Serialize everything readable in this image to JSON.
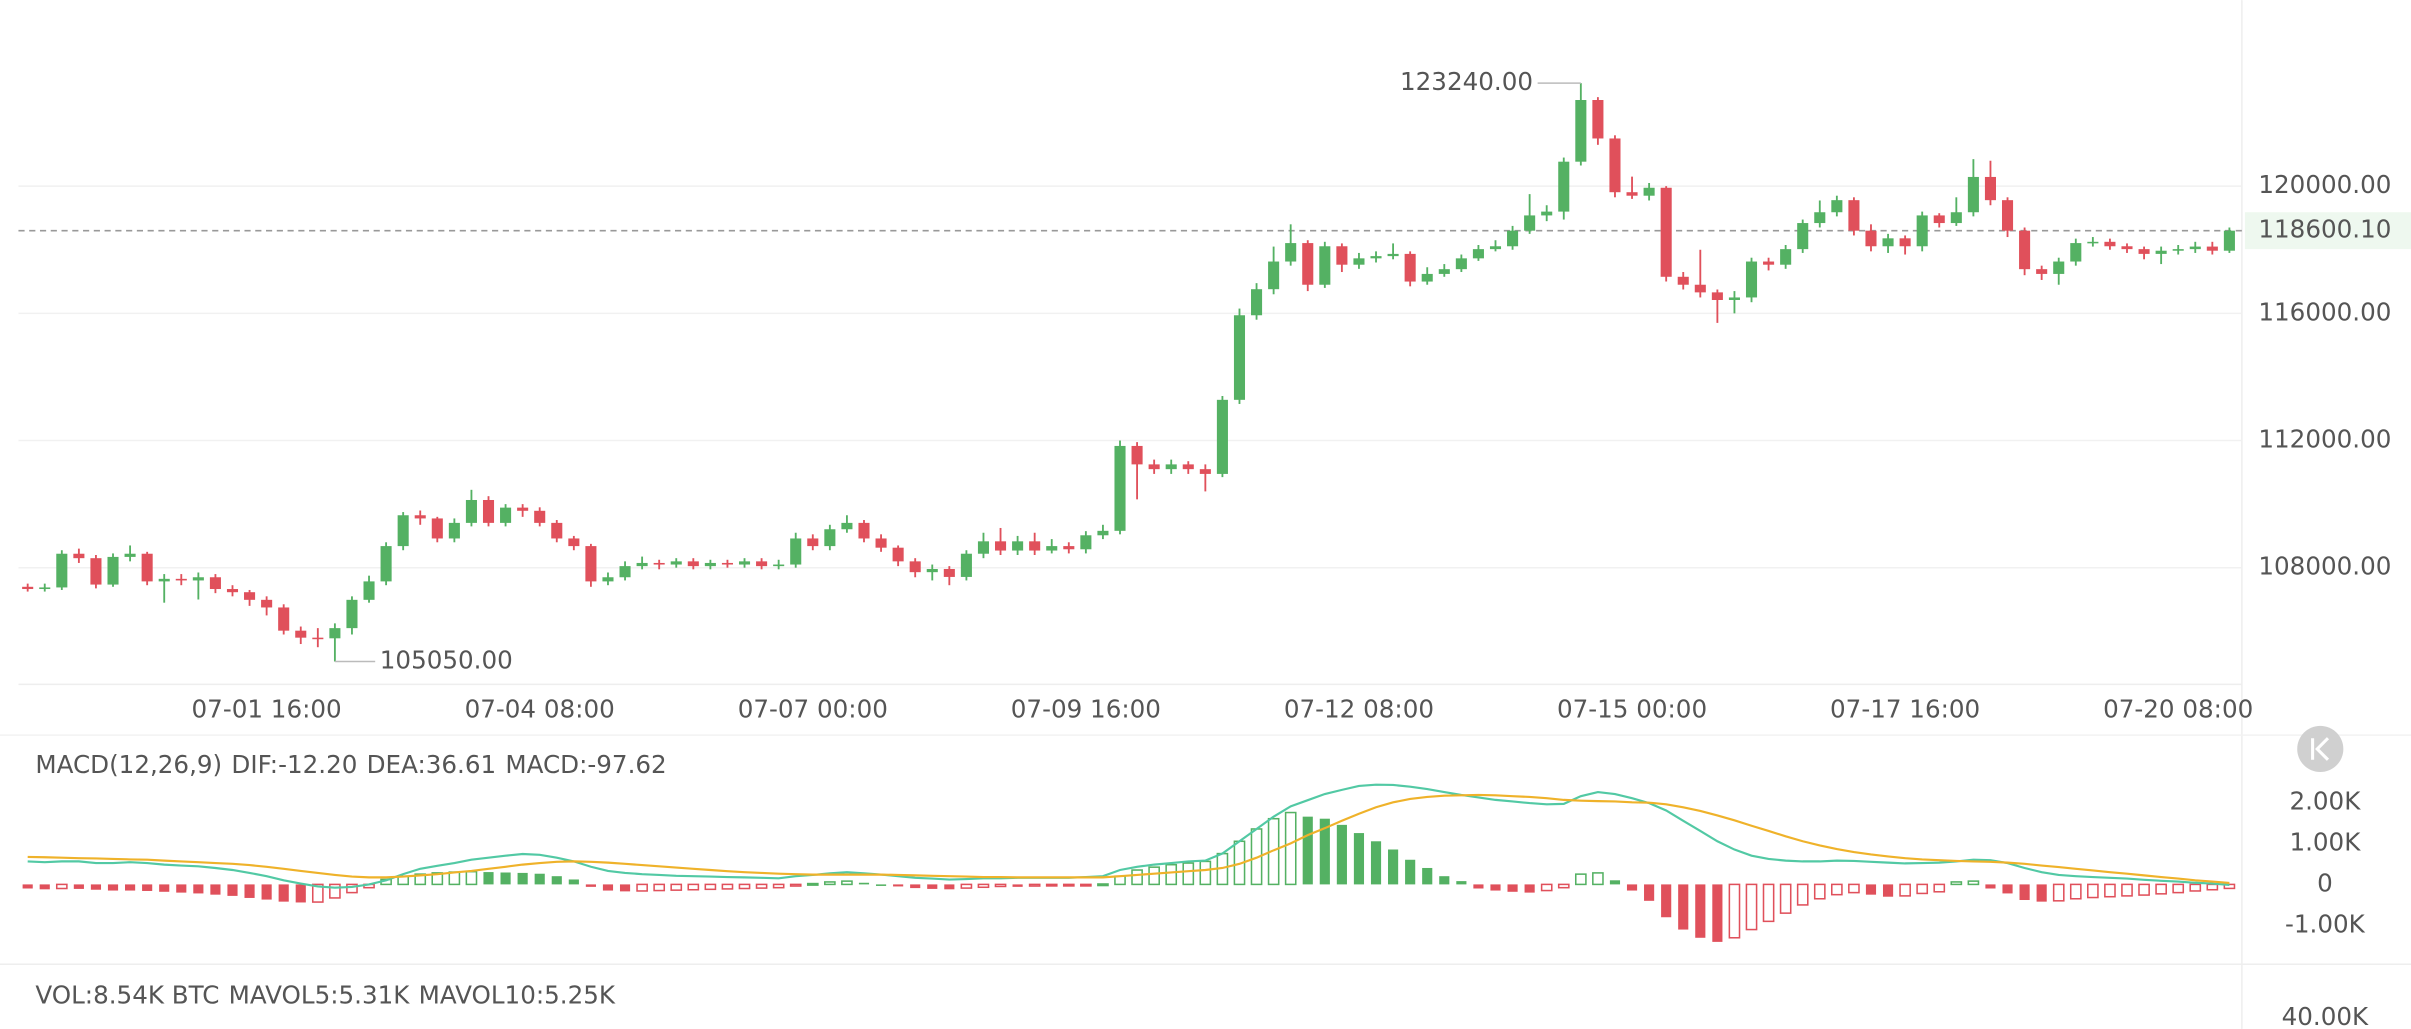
{
  "chart_data": [
    {
      "type": "candlestick",
      "categories": [
        null,
        null,
        null,
        null,
        null,
        null,
        null,
        null,
        null,
        null,
        null,
        null,
        null,
        null,
        "07-01 16:00",
        null,
        null,
        null,
        null,
        null,
        null,
        null,
        null,
        null,
        null,
        null,
        null,
        null,
        null,
        null,
        "07-04 08:00",
        null,
        null,
        null,
        null,
        null,
        null,
        null,
        null,
        null,
        null,
        null,
        null,
        null,
        null,
        null,
        "07-07 00:00",
        null,
        null,
        null,
        null,
        null,
        null,
        null,
        null,
        null,
        null,
        null,
        null,
        null,
        null,
        null,
        "07-09 16:00",
        null,
        null,
        null,
        null,
        null,
        null,
        null,
        null,
        null,
        null,
        null,
        null,
        null,
        null,
        null,
        "07-12 08:00",
        null,
        null,
        null,
        null,
        null,
        null,
        null,
        null,
        null,
        null,
        null,
        null,
        null,
        null,
        null,
        "07-15 00:00",
        null,
        null,
        null,
        null,
        null,
        null,
        null,
        null,
        null,
        null,
        null,
        null,
        null,
        null,
        null,
        "07-17 16:00",
        null,
        null,
        null,
        null,
        null,
        null,
        null,
        null,
        null,
        null,
        null,
        null,
        null,
        null,
        null,
        "07-20 08:00",
        null,
        null,
        null
      ],
      "open": [
        107400,
        107330,
        107380,
        108440,
        108300,
        107470,
        108340,
        108440,
        107570,
        107650,
        107600,
        107700,
        107330,
        107230,
        106990,
        106750,
        106020,
        105800,
        105780,
        106100,
        106990,
        107570,
        108680,
        109650,
        109550,
        108920,
        109410,
        110130,
        109410,
        109890,
        109790,
        109410,
        108920,
        108680,
        107570,
        107700,
        108050,
        108150,
        108100,
        108200,
        108050,
        108150,
        108100,
        108200,
        108050,
        108100,
        108920,
        108680,
        109210,
        109410,
        108920,
        108630,
        108200,
        107860,
        107960,
        107710,
        108440,
        108830,
        108540,
        108830,
        108540,
        108680,
        108580,
        109020,
        109160,
        111830,
        111250,
        111100,
        111250,
        111100,
        110950,
        113280,
        115940,
        116760,
        117630,
        118210,
        116900,
        118110,
        117530,
        117730,
        117800,
        117870,
        117000,
        117240,
        117390,
        117730,
        118020,
        118110,
        118600,
        119080,
        119200,
        120770,
        122710,
        121500,
        119810,
        119700,
        119950,
        117150,
        116900,
        116660,
        116420,
        116500,
        117630,
        117530,
        118020,
        118840,
        119180,
        119560,
        118600,
        118110,
        118360,
        118110,
        119080,
        118840,
        119180,
        120290,
        119560,
        118600,
        117390,
        117240,
        117630,
        118210,
        118250,
        118110,
        118020,
        117870,
        117970,
        118020,
        118100,
        117970
      ],
      "high": [
        107500,
        107500,
        108550,
        108600,
        108400,
        108450,
        108700,
        108500,
        107800,
        107800,
        107850,
        107800,
        107450,
        107300,
        107100,
        106850,
        106150,
        106100,
        106250,
        107100,
        107750,
        108800,
        109750,
        109800,
        109600,
        109550,
        110450,
        110250,
        110000,
        110000,
        109900,
        109500,
        109000,
        108750,
        107850,
        108200,
        108350,
        108250,
        108300,
        108300,
        108250,
        108250,
        108300,
        108300,
        108250,
        109100,
        109050,
        109350,
        109650,
        109500,
        109050,
        108700,
        108300,
        108100,
        108050,
        108550,
        109100,
        109250,
        109000,
        109100,
        108900,
        108800,
        109150,
        109350,
        112000,
        111950,
        111400,
        111400,
        111350,
        111250,
        113400,
        116150,
        116950,
        118100,
        118800,
        118300,
        118250,
        118200,
        117900,
        117950,
        118200,
        117950,
        117450,
        117550,
        117850,
        118150,
        118300,
        118750,
        119750,
        119400,
        120900,
        123240,
        122800,
        121600,
        120300,
        120100,
        120000,
        117300,
        118000,
        116750,
        116700,
        117750,
        117750,
        118150,
        118950,
        119550,
        119700,
        119650,
        118800,
        118500,
        118450,
        119200,
        119150,
        119650,
        120850,
        120800,
        119650,
        118700,
        117500,
        117750,
        118350,
        118400,
        118350,
        118200,
        118100,
        118100,
        118150,
        118250,
        118250,
        118700
      ],
      "low": [
        107250,
        107250,
        107300,
        108150,
        107350,
        107400,
        108200,
        107450,
        106900,
        107450,
        107000,
        107200,
        107100,
        106800,
        106500,
        105900,
        105600,
        105500,
        105050,
        105900,
        106900,
        107450,
        108550,
        109350,
        108800,
        108800,
        109300,
        109300,
        109300,
        109600,
        109300,
        108800,
        108550,
        107400,
        107450,
        107600,
        107950,
        107950,
        108000,
        107950,
        107950,
        108000,
        108000,
        107950,
        107950,
        108000,
        108550,
        108550,
        109100,
        108800,
        108500,
        108050,
        107700,
        107600,
        107450,
        107600,
        108300,
        108400,
        108400,
        108400,
        108450,
        108450,
        108450,
        108900,
        109050,
        110150,
        110950,
        110950,
        110950,
        110400,
        110850,
        113150,
        115800,
        116600,
        117500,
        116700,
        116800,
        117300,
        117400,
        117600,
        117700,
        116850,
        116900,
        117150,
        117300,
        117650,
        117950,
        118000,
        118500,
        118900,
        118950,
        120650,
        121300,
        119650,
        119600,
        119550,
        117000,
        116750,
        116500,
        115700,
        116000,
        116350,
        117350,
        117400,
        117900,
        118700,
        119050,
        118450,
        117950,
        117900,
        117850,
        117950,
        118700,
        118750,
        119050,
        119400,
        118400,
        117200,
        117050,
        116900,
        117500,
        118100,
        118000,
        117900,
        117700,
        117550,
        117850,
        117900,
        117850,
        117900
      ],
      "close": [
        107330,
        107380,
        108440,
        108300,
        107470,
        108340,
        108440,
        107570,
        107650,
        107600,
        107700,
        107330,
        107230,
        106990,
        106750,
        106020,
        105800,
        105780,
        106100,
        106990,
        107570,
        108680,
        109650,
        109550,
        108920,
        109410,
        110130,
        109410,
        109890,
        109790,
        109410,
        108920,
        108680,
        107570,
        107700,
        108050,
        108150,
        108100,
        108200,
        108050,
        108150,
        108100,
        108200,
        108050,
        108100,
        108920,
        108680,
        109210,
        109410,
        108920,
        108630,
        108200,
        107860,
        107960,
        107710,
        108440,
        108830,
        108540,
        108830,
        108540,
        108680,
        108580,
        109020,
        109160,
        111830,
        111250,
        111100,
        111250,
        111100,
        110950,
        113280,
        115940,
        116760,
        117630,
        118210,
        116900,
        118110,
        117530,
        117730,
        117800,
        117870,
        117000,
        117240,
        117390,
        117730,
        118020,
        118110,
        118600,
        119080,
        119200,
        120770,
        122710,
        121500,
        119810,
        119700,
        119950,
        117150,
        116900,
        116660,
        116420,
        116500,
        117630,
        117530,
        118020,
        118840,
        119180,
        119560,
        118600,
        118110,
        118360,
        118110,
        119080,
        118840,
        119180,
        120290,
        119560,
        118600,
        117390,
        117240,
        117630,
        118210,
        118250,
        118110,
        118020,
        117870,
        117970,
        118020,
        118100,
        117970,
        118600.1
      ],
      "up_color": "#54b163",
      "down_color": "#e0505b",
      "ylim": [
        104330,
        125850
      ],
      "yticks": [
        {
          "value": 108000,
          "label": "108000.00"
        },
        {
          "value": 112000,
          "label": "112000.00"
        },
        {
          "value": 116000,
          "label": "116000.00"
        },
        {
          "value": 120000,
          "label": "120000.00"
        }
      ],
      "grid": true,
      "last_price": {
        "value": 118600.1,
        "label": "118600.10"
      },
      "high_label": {
        "value": 123240,
        "label": "123240.00"
      },
      "low_label": {
        "value": 105050,
        "label": "105050.00"
      }
    },
    {
      "type": "macd",
      "title": "MACD(12,26,9)",
      "series": [
        {
          "name": "DIF:-12.20",
          "color": "#52c9a4",
          "values": [
            560,
            540,
            560,
            560,
            520,
            520,
            540,
            520,
            480,
            460,
            440,
            400,
            350,
            280,
            200,
            100,
            20,
            -50,
            -80,
            -60,
            0,
            100,
            250,
            380,
            450,
            520,
            600,
            650,
            700,
            740,
            720,
            650,
            560,
            430,
            330,
            280,
            250,
            230,
            210,
            200,
            190,
            180,
            170,
            160,
            150,
            200,
            230,
            270,
            300,
            270,
            240,
            200,
            160,
            140,
            120,
            130,
            150,
            150,
            160,
            160,
            160,
            160,
            180,
            200,
            350,
            430,
            480,
            520,
            560,
            580,
            750,
            1050,
            1350,
            1650,
            1900,
            2050,
            2200,
            2300,
            2400,
            2430,
            2420,
            2380,
            2320,
            2250,
            2180,
            2120,
            2060,
            2020,
            1980,
            1950,
            1960,
            2150,
            2250,
            2200,
            2100,
            1980,
            1800,
            1550,
            1300,
            1050,
            850,
            700,
            620,
            580,
            560,
            560,
            580,
            570,
            550,
            530,
            510,
            520,
            530,
            560,
            600,
            590,
            520,
            400,
            300,
            230,
            200,
            180,
            160,
            140,
            110,
            90,
            70,
            40,
            20,
            -12.2
          ]
        },
        {
          "name": "DEA:36.61",
          "color": "#efb22a",
          "values": [
            670,
            660,
            650,
            640,
            630,
            620,
            610,
            600,
            580,
            560,
            540,
            520,
            500,
            470,
            430,
            380,
            330,
            280,
            230,
            190,
            170,
            170,
            190,
            220,
            250,
            290,
            330,
            380,
            430,
            480,
            520,
            550,
            560,
            550,
            530,
            500,
            470,
            440,
            410,
            380,
            350,
            320,
            300,
            280,
            260,
            250,
            240,
            240,
            240,
            240,
            240,
            230,
            220,
            210,
            200,
            190,
            180,
            180,
            170,
            170,
            170,
            170,
            170,
            170,
            200,
            230,
            260,
            290,
            320,
            350,
            400,
            500,
            650,
            830,
            1000,
            1200,
            1370,
            1550,
            1720,
            1880,
            2000,
            2080,
            2130,
            2160,
            2170,
            2180,
            2170,
            2150,
            2130,
            2100,
            2060,
            2040,
            2030,
            2020,
            2000,
            1990,
            1950,
            1880,
            1790,
            1680,
            1560,
            1430,
            1300,
            1170,
            1050,
            950,
            860,
            790,
            730,
            680,
            640,
            610,
            590,
            570,
            560,
            550,
            530,
            500,
            460,
            420,
            380,
            340,
            300,
            260,
            220,
            180,
            140,
            100,
            70,
            36.61
          ]
        }
      ],
      "histogram": {
        "name": "MACD:-97.62",
        "color": "#d150b6",
        "values": [
          -100,
          -120,
          -100,
          -110,
          -130,
          -150,
          -150,
          -160,
          -180,
          -200,
          -220,
          -250,
          -280,
          -330,
          -370,
          -420,
          -440,
          -430,
          -330,
          -200,
          -80,
          120,
          200,
          250,
          280,
          300,
          310,
          300,
          290,
          280,
          260,
          200,
          120,
          -60,
          -150,
          -170,
          -160,
          -150,
          -140,
          -130,
          -120,
          -110,
          -100,
          -90,
          -80,
          -40,
          20,
          60,
          80,
          40,
          0,
          -50,
          -90,
          -110,
          -120,
          -90,
          -70,
          -50,
          -60,
          -40,
          -30,
          -20,
          -10,
          10,
          200,
          350,
          420,
          480,
          520,
          560,
          750,
          1050,
          1350,
          1600,
          1750,
          1650,
          1600,
          1450,
          1250,
          1050,
          850,
          600,
          400,
          200,
          80,
          -100,
          -150,
          -180,
          -200,
          -150,
          -80,
          250,
          280,
          100,
          -150,
          -400,
          -800,
          -1100,
          -1300,
          -1400,
          -1300,
          -1100,
          -900,
          -700,
          -500,
          -350,
          -250,
          -200,
          -250,
          -300,
          -280,
          -220,
          -180,
          60,
          80,
          -100,
          -220,
          -380,
          -420,
          -400,
          -350,
          -320,
          -300,
          -280,
          -260,
          -230,
          -200,
          -160,
          -130,
          -97.62
        ]
      },
      "up_color": "#54b163",
      "down_color": "#e0505b",
      "ylim": [
        -1870,
        3560
      ],
      "yticks": [
        {
          "value": -1000,
          "label": "-1.00K"
        },
        0,
        {
          "value": 1000,
          "label": "1.00K"
        },
        {
          "value": 2000,
          "label": "2.00K"
        }
      ]
    },
    {
      "type": "volume",
      "title": "VOL:8.54K BTC",
      "legend": [
        {
          "name": "MAVOL5:5.31K",
          "color": "#52c9a4"
        },
        {
          "name": "MAVOL10:5.25K",
          "color": "#efb22a"
        }
      ],
      "ylim": [
        0,
        42000
      ],
      "yticks": [
        {
          "value": 40000,
          "label": "40.00K"
        }
      ]
    }
  ]
}
